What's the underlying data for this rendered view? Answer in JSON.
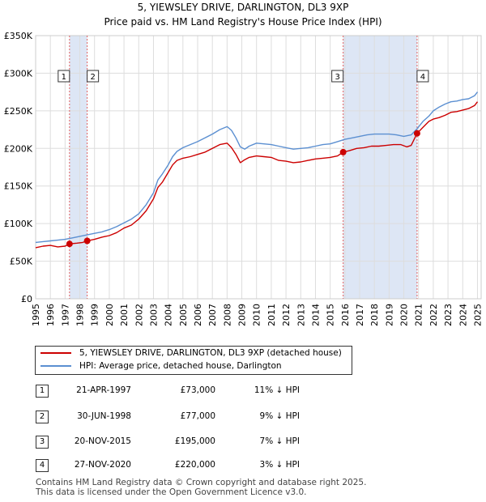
{
  "title_line1": "5, YIEWSLEY DRIVE, DARLINGTON, DL3 9XP",
  "title_line2": "Price paid vs. HM Land Registry's House Price Index (HPI)",
  "chart_data": {
    "type": "line",
    "title": "5, YIEWSLEY DRIVE, DARLINGTON, DL3 9XP",
    "subtitle": "Price paid vs. HM Land Registry's House Price Index (HPI)",
    "xlim": [
      1995.0,
      2025.25
    ],
    "ylim": [
      0,
      350000
    ],
    "y_ticks": [
      {
        "value": 0,
        "label": "£0"
      },
      {
        "value": 50000,
        "label": "£50K"
      },
      {
        "value": 100000,
        "label": "£100K"
      },
      {
        "value": 150000,
        "label": "£150K"
      },
      {
        "value": 200000,
        "label": "£200K"
      },
      {
        "value": 250000,
        "label": "£250K"
      },
      {
        "value": 300000,
        "label": "£300K"
      },
      {
        "value": 350000,
        "label": "£350K"
      }
    ],
    "x_ticks": [
      "1995",
      "1996",
      "1997",
      "1998",
      "1999",
      "2000",
      "2001",
      "2002",
      "2003",
      "2004",
      "2005",
      "2006",
      "2007",
      "2008",
      "2009",
      "2010",
      "2011",
      "2012",
      "2013",
      "2014",
      "2015",
      "2016",
      "2017",
      "2018",
      "2019",
      "2020",
      "2021",
      "2022",
      "2023",
      "2024",
      "2025"
    ],
    "grid": true,
    "colors": {
      "property": "#cc0000",
      "hpi": "#5b8fd1",
      "shade": "#dde6f5",
      "vline": "#e06060",
      "grid": "#dddddd"
    },
    "shaded_ranges": [
      [
        1997.3,
        1998.5
      ],
      [
        2015.88,
        2020.9
      ]
    ],
    "series": [
      {
        "name": "5, YIEWSLEY DRIVE, DARLINGTON, DL3 9XP (detached house)",
        "color": "#cc0000",
        "x": [
          1995.0,
          1995.5,
          1996.0,
          1996.5,
          1997.0,
          1997.3,
          1997.8,
          1998.2,
          1998.5,
          1999.0,
          1999.5,
          2000.0,
          2000.5,
          2001.0,
          2001.5,
          2002.0,
          2002.5,
          2003.0,
          2003.3,
          2003.6,
          2004.0,
          2004.3,
          2004.6,
          2005.0,
          2005.5,
          2006.0,
          2006.5,
          2007.0,
          2007.5,
          2008.0,
          2008.3,
          2008.6,
          2008.9,
          2009.2,
          2009.5,
          2010.0,
          2010.5,
          2011.0,
          2011.5,
          2012.0,
          2012.5,
          2013.0,
          2013.5,
          2014.0,
          2014.5,
          2015.0,
          2015.5,
          2015.88,
          2016.3,
          2016.8,
          2017.3,
          2017.8,
          2018.3,
          2018.8,
          2019.3,
          2019.8,
          2020.2,
          2020.5,
          2020.9,
          2021.3,
          2021.7,
          2022.0,
          2022.4,
          2022.8,
          2023.2,
          2023.6,
          2024.0,
          2024.4,
          2024.8,
          2025.0
        ],
        "y": [
          68000,
          70000,
          71000,
          69000,
          70000,
          73000,
          74000,
          75000,
          77000,
          79000,
          82000,
          84000,
          88000,
          94000,
          98000,
          106000,
          117000,
          133000,
          148000,
          155000,
          168000,
          178000,
          184000,
          187000,
          189000,
          192000,
          195000,
          200000,
          205000,
          207000,
          201000,
          192000,
          181000,
          185000,
          188000,
          190000,
          189000,
          188000,
          184000,
          183000,
          181000,
          182000,
          184000,
          186000,
          187000,
          188000,
          190000,
          195000,
          197000,
          200000,
          201000,
          203000,
          203000,
          204000,
          205000,
          205000,
          202000,
          204000,
          220000,
          228000,
          236000,
          239000,
          241000,
          244000,
          248000,
          249000,
          251000,
          253000,
          257000,
          262000
        ]
      },
      {
        "name": "HPI: Average price, detached house, Darlington",
        "color": "#5b8fd1",
        "x": [
          1995.0,
          1995.5,
          1996.0,
          1996.5,
          1997.0,
          1997.5,
          1998.0,
          1998.5,
          1999.0,
          1999.5,
          2000.0,
          2000.5,
          2001.0,
          2001.5,
          2002.0,
          2002.5,
          2003.0,
          2003.3,
          2003.6,
          2004.0,
          2004.3,
          2004.6,
          2005.0,
          2005.5,
          2006.0,
          2006.5,
          2007.0,
          2007.5,
          2008.0,
          2008.3,
          2008.6,
          2008.9,
          2009.2,
          2009.5,
          2010.0,
          2010.5,
          2011.0,
          2011.5,
          2012.0,
          2012.5,
          2013.0,
          2013.5,
          2014.0,
          2014.5,
          2015.0,
          2015.5,
          2016.0,
          2016.5,
          2017.0,
          2017.5,
          2018.0,
          2018.5,
          2019.0,
          2019.5,
          2020.0,
          2020.5,
          2020.9,
          2021.3,
          2021.7,
          2022.0,
          2022.4,
          2022.8,
          2023.2,
          2023.6,
          2024.0,
          2024.4,
          2024.8,
          2025.0
        ],
        "y": [
          75000,
          76000,
          77000,
          78000,
          79000,
          81000,
          83000,
          85000,
          87000,
          89000,
          92000,
          96000,
          101000,
          106000,
          113000,
          125000,
          141000,
          158000,
          166000,
          178000,
          189000,
          196000,
          201000,
          205000,
          209000,
          214000,
          219000,
          225000,
          229000,
          224000,
          214000,
          202000,
          199000,
          203000,
          207000,
          206000,
          205000,
          203000,
          201000,
          199000,
          200000,
          201000,
          203000,
          205000,
          206000,
          209000,
          212000,
          214000,
          216000,
          218000,
          219000,
          219000,
          219000,
          218000,
          216000,
          218000,
          226000,
          236000,
          243000,
          250000,
          255000,
          259000,
          262000,
          263000,
          265000,
          266000,
          270000,
          275000
        ]
      }
    ],
    "sales": [
      {
        "n": "1",
        "x": 1997.3,
        "y": 73000
      },
      {
        "n": "2",
        "x": 1998.5,
        "y": 77000
      },
      {
        "n": "3",
        "x": 2015.88,
        "y": 195000
      },
      {
        "n": "4",
        "x": 2020.9,
        "y": 220000
      }
    ]
  },
  "legend": {
    "property": "5, YIEWSLEY DRIVE, DARLINGTON, DL3 9XP (detached house)",
    "hpi": "HPI: Average price, detached house, Darlington"
  },
  "sales_table": [
    {
      "n": "1",
      "date": "21-APR-1997",
      "price": "£73,000",
      "hpi": "11% ↓ HPI"
    },
    {
      "n": "2",
      "date": "30-JUN-1998",
      "price": "£77,000",
      "hpi": "9% ↓ HPI"
    },
    {
      "n": "3",
      "date": "20-NOV-2015",
      "price": "£195,000",
      "hpi": "7% ↓ HPI"
    },
    {
      "n": "4",
      "date": "27-NOV-2020",
      "price": "£220,000",
      "hpi": "3% ↓ HPI"
    }
  ],
  "footer_line1": "Contains HM Land Registry data © Crown copyright and database right 2025.",
  "footer_line2": "This data is licensed under the Open Government Licence v3.0."
}
